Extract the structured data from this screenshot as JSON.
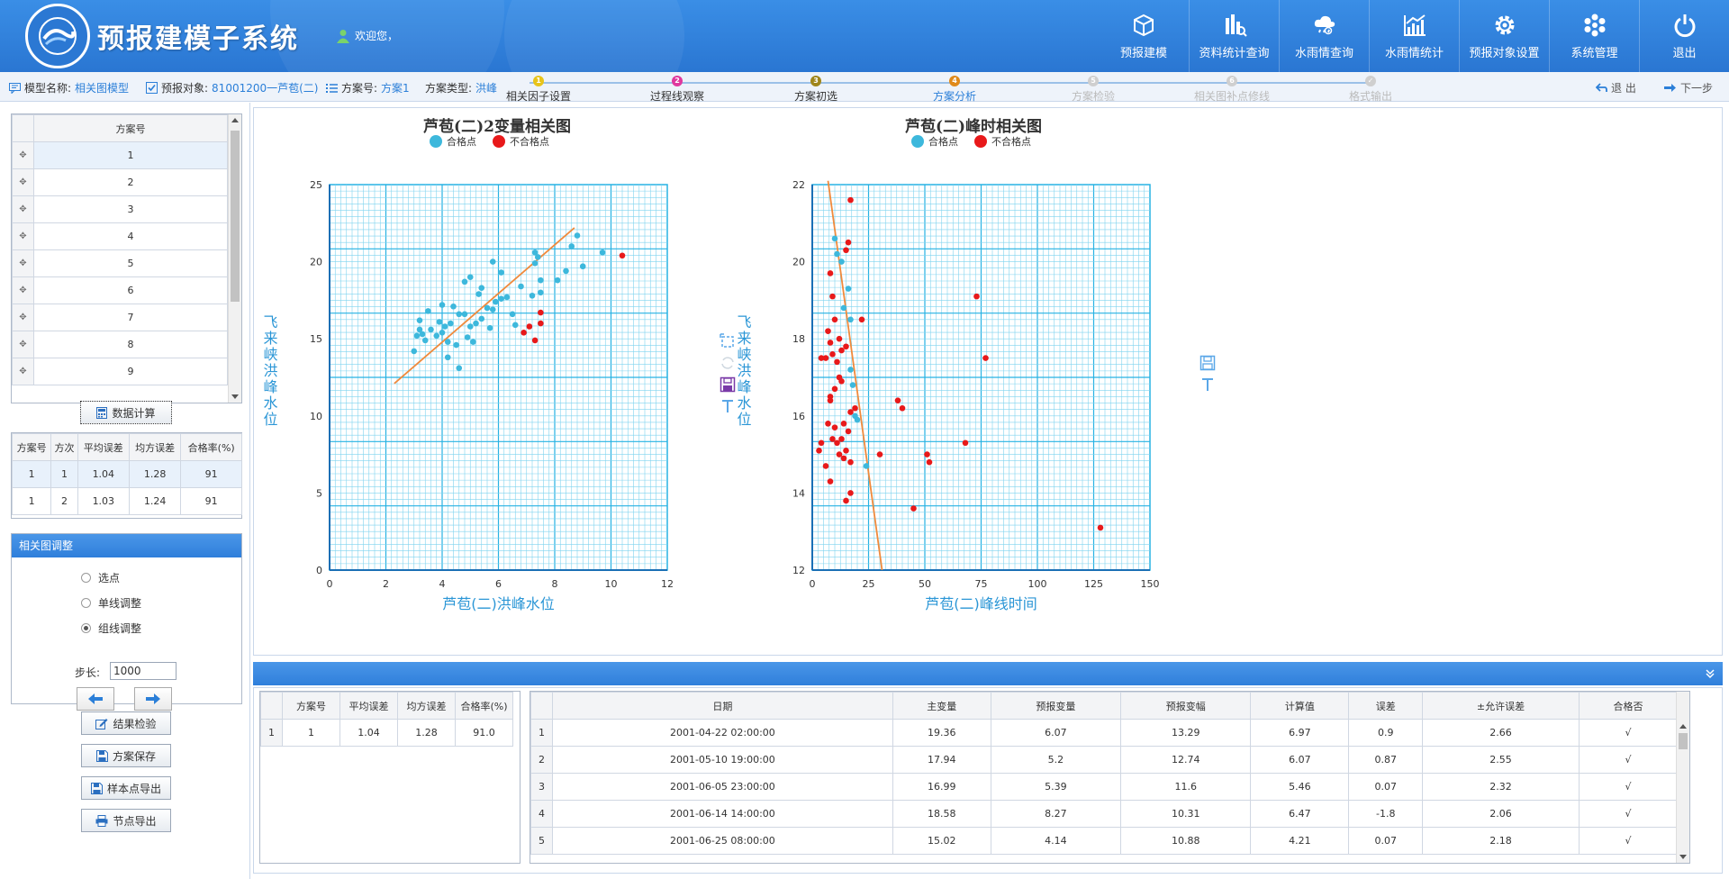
{
  "header": {
    "app_title": "预报建模子系统",
    "welcome": "欢迎您，",
    "nav": [
      {
        "label": "预报建模",
        "icon": "cube-icon"
      },
      {
        "label": "资料统计查询",
        "icon": "bar-chart-icon"
      },
      {
        "label": "水雨情查询",
        "icon": "cloud-rain-icon"
      },
      {
        "label": "水雨情统计",
        "icon": "line-chart-icon"
      },
      {
        "label": "预报对象设置",
        "icon": "gear-icon"
      },
      {
        "label": "系统管理",
        "icon": "flower-icon"
      },
      {
        "label": "退出",
        "icon": "power-icon"
      }
    ]
  },
  "subbar": {
    "model_label": "模型名称:",
    "model_value": "相关图模型",
    "target_label": "预报对象:",
    "target_value": "81001200一芦苞(二)",
    "scheme_label": "方案号:",
    "scheme_value": "方案1",
    "type_label": "方案类型:",
    "type_value": "洪峰",
    "steps": [
      {
        "n": "1",
        "label": "相关因子设置",
        "color": "#e8c41a",
        "text_color": "#333"
      },
      {
        "n": "2",
        "label": "过程线观察",
        "color": "#e0389e",
        "text_color": "#333"
      },
      {
        "n": "3",
        "label": "方案初选",
        "color": "#a0861a",
        "text_color": "#333"
      },
      {
        "n": "4",
        "label": "方案分析",
        "color": "#e08a1a",
        "text_color": "#2b7fd8"
      },
      {
        "n": "5",
        "label": "方案检验",
        "color": "#cfcfcf",
        "text_color": "#bbb"
      },
      {
        "n": "6",
        "label": "相关图补点修线",
        "color": "#cfcfcf",
        "text_color": "#bbb"
      },
      {
        "n": "✓",
        "label": "格式输出",
        "color": "#cfcfcf",
        "text_color": "#bbb"
      }
    ],
    "back": "退 出",
    "next": "下一步"
  },
  "left": {
    "scheme_header": "方案号",
    "schemes": [
      "1",
      "2",
      "3",
      "4",
      "5",
      "6",
      "7",
      "8",
      "9"
    ],
    "calc_button": "数据计算",
    "err_headers": [
      "方案号",
      "方次",
      "平均误差",
      "均方误差",
      "合格率(%)"
    ],
    "err_rows": [
      [
        "1",
        "1",
        "1.04",
        "1.28",
        "91"
      ],
      [
        "1",
        "2",
        "1.03",
        "1.24",
        "91"
      ]
    ],
    "adjust_title": "相关图调整",
    "radios": [
      "选点",
      "单线调整",
      "组线调整"
    ],
    "radio_selected": 2,
    "step_label": "步长:",
    "step_value": "1000",
    "buttons": [
      "结果检验",
      "方案保存",
      "样本点导出",
      "节点导出"
    ]
  },
  "chart_data": [
    {
      "type": "scatter",
      "title": "芦苞(二)2变量相关图",
      "xlabel": "芦苞(二)洪峰水位",
      "ylabel": "飞来峡洪峰水位",
      "legend": [
        "合格点",
        "不合格点"
      ],
      "legend_position": "top-center",
      "grid": true,
      "xlim": [
        0,
        12
      ],
      "ylim": [
        0,
        25
      ],
      "xticks": [
        0,
        2,
        4,
        6,
        8,
        10,
        12
      ],
      "yticks": [
        0,
        5,
        10,
        15,
        20,
        25
      ],
      "series": [
        {
          "name": "合格点",
          "color": "#3db8dc",
          "points": [
            [
              3.0,
              14.2
            ],
            [
              3.1,
              15.2
            ],
            [
              3.2,
              15.6
            ],
            [
              3.3,
              15.3
            ],
            [
              3.2,
              16.2
            ],
            [
              3.4,
              14.9
            ],
            [
              3.6,
              15.6
            ],
            [
              3.5,
              16.8
            ],
            [
              3.8,
              15.2
            ],
            [
              3.9,
              16.1
            ],
            [
              4.0,
              15.4
            ],
            [
              4.0,
              17.2
            ],
            [
              4.1,
              15.8
            ],
            [
              4.2,
              14.8
            ],
            [
              4.2,
              13.8
            ],
            [
              4.3,
              16.0
            ],
            [
              4.4,
              17.1
            ],
            [
              4.5,
              14.6
            ],
            [
              4.6,
              16.6
            ],
            [
              4.6,
              13.1
            ],
            [
              4.8,
              16.6
            ],
            [
              4.8,
              18.7
            ],
            [
              4.9,
              15.1
            ],
            [
              5.0,
              15.8
            ],
            [
              5.0,
              19.0
            ],
            [
              5.1,
              14.8
            ],
            [
              5.2,
              16.0
            ],
            [
              5.3,
              17.9
            ],
            [
              5.4,
              16.3
            ],
            [
              5.4,
              18.3
            ],
            [
              5.6,
              17.0
            ],
            [
              5.7,
              15.7
            ],
            [
              5.8,
              16.9
            ],
            [
              5.8,
              20.0
            ],
            [
              5.9,
              17.4
            ],
            [
              6.1,
              17.6
            ],
            [
              6.1,
              19.3
            ],
            [
              6.3,
              17.7
            ],
            [
              6.5,
              16.6
            ],
            [
              6.6,
              15.9
            ],
            [
              6.8,
              18.4
            ],
            [
              7.2,
              17.8
            ],
            [
              7.3,
              19.9
            ],
            [
              7.3,
              20.6
            ],
            [
              7.4,
              20.3
            ],
            [
              7.5,
              18.8
            ],
            [
              7.5,
              18.0
            ],
            [
              8.1,
              18.8
            ],
            [
              8.4,
              19.4
            ],
            [
              8.6,
              21.0
            ],
            [
              8.8,
              21.7
            ],
            [
              9.0,
              19.7
            ],
            [
              9.7,
              20.6
            ]
          ]
        },
        {
          "name": "不合格点",
          "color": "#e8191a",
          "points": [
            [
              6.9,
              15.4
            ],
            [
              7.1,
              15.8
            ],
            [
              7.3,
              14.9
            ],
            [
              7.5,
              16.7
            ],
            [
              7.5,
              16.0
            ],
            [
              10.4,
              20.4
            ]
          ]
        }
      ],
      "fit_line": [
        [
          2.3,
          12.1
        ],
        [
          8.7,
          22.2
        ]
      ],
      "fit_line_color": "#f08a3c"
    },
    {
      "type": "scatter",
      "title": "芦苞(二)峰时相关图",
      "xlabel": "芦苞(二)峰线时间",
      "ylabel": "飞来峡洪峰水位",
      "legend": [
        "合格点",
        "不合格点"
      ],
      "legend_position": "top-center",
      "grid": true,
      "xlim": [
        0,
        150
      ],
      "ylim": [
        12,
        22
      ],
      "xticks": [
        0,
        25,
        50,
        75,
        100,
        125,
        150
      ],
      "yticks": [
        12,
        14,
        16,
        18,
        20,
        22
      ],
      "series": [
        {
          "name": "合格点",
          "color": "#3db8dc",
          "points": [
            [
              10,
              20.6
            ],
            [
              11,
              20.2
            ],
            [
              13,
              20.0
            ],
            [
              14,
              18.8
            ],
            [
              16,
              19.3
            ],
            [
              17,
              18.5
            ],
            [
              17,
              17.2
            ],
            [
              18,
              16.8
            ],
            [
              19,
              16.0
            ],
            [
              20,
              15.9
            ],
            [
              24,
              14.7
            ]
          ]
        },
        {
          "name": "不合格点",
          "color": "#e8191a",
          "points": [
            [
              17,
              21.6
            ],
            [
              16,
              20.5
            ],
            [
              15,
              20.3
            ],
            [
              8,
              19.7
            ],
            [
              9,
              19.1
            ],
            [
              7,
              18.2
            ],
            [
              12,
              18.0
            ],
            [
              10,
              18.5
            ],
            [
              22,
              18.5
            ],
            [
              6,
              17.5
            ],
            [
              8,
              17.9
            ],
            [
              11,
              17.4
            ],
            [
              13,
              17.7
            ],
            [
              15,
              17.8
            ],
            [
              12,
              17.0
            ],
            [
              13,
              16.9
            ],
            [
              10,
              16.7
            ],
            [
              8,
              16.5
            ],
            [
              8,
              16.4
            ],
            [
              4,
              17.5
            ],
            [
              9,
              17.6
            ],
            [
              17,
              16.1
            ],
            [
              19,
              16.2
            ],
            [
              7,
              15.8
            ],
            [
              10,
              15.7
            ],
            [
              14,
              15.8
            ],
            [
              16,
              15.6
            ],
            [
              9,
              15.4
            ],
            [
              11,
              15.3
            ],
            [
              13,
              15.4
            ],
            [
              3,
              15.1
            ],
            [
              4,
              15.3
            ],
            [
              15,
              15.1
            ],
            [
              12,
              15.0
            ],
            [
              14,
              14.9
            ],
            [
              17,
              14.8
            ],
            [
              6,
              14.7
            ],
            [
              8,
              14.3
            ],
            [
              17,
              14.0
            ],
            [
              15,
              13.8
            ],
            [
              30,
              15.0
            ],
            [
              38,
              16.4
            ],
            [
              40,
              16.2
            ],
            [
              45,
              13.6
            ],
            [
              51,
              15.0
            ],
            [
              52,
              14.8
            ],
            [
              68,
              15.3
            ],
            [
              73,
              19.1
            ],
            [
              77,
              17.5
            ],
            [
              128,
              13.1
            ]
          ]
        }
      ],
      "fit_line": [
        [
          7,
          22.1
        ],
        [
          31,
          12.0
        ]
      ],
      "fit_line_color": "#f08a3c"
    }
  ],
  "summary": {
    "headers": [
      "方案号",
      "平均误差",
      "均方误差",
      "合格率(%)"
    ],
    "rows": [
      [
        "1",
        "1",
        "1.04",
        "1.28",
        "91.0"
      ]
    ]
  },
  "detail": {
    "headers": [
      "日期",
      "主变量",
      "预报变量",
      "预报变幅",
      "计算值",
      "误差",
      "±允许误差",
      "合格否"
    ],
    "rows": [
      [
        "1",
        "2001-04-22 02:00:00",
        "19.36",
        "6.07",
        "13.29",
        "6.97",
        "0.9",
        "2.66",
        "√"
      ],
      [
        "2",
        "2001-05-10 19:00:00",
        "17.94",
        "5.2",
        "12.74",
        "6.07",
        "0.87",
        "2.55",
        "√"
      ],
      [
        "3",
        "2001-06-05 23:00:00",
        "16.99",
        "5.39",
        "11.6",
        "5.46",
        "0.07",
        "2.32",
        "√"
      ],
      [
        "4",
        "2001-06-14 14:00:00",
        "18.58",
        "8.27",
        "10.31",
        "6.47",
        "-1.8",
        "2.06",
        "√"
      ],
      [
        "5",
        "2001-06-25 08:00:00",
        "15.02",
        "4.14",
        "10.88",
        "4.21",
        "0.07",
        "2.18",
        "√"
      ]
    ]
  }
}
